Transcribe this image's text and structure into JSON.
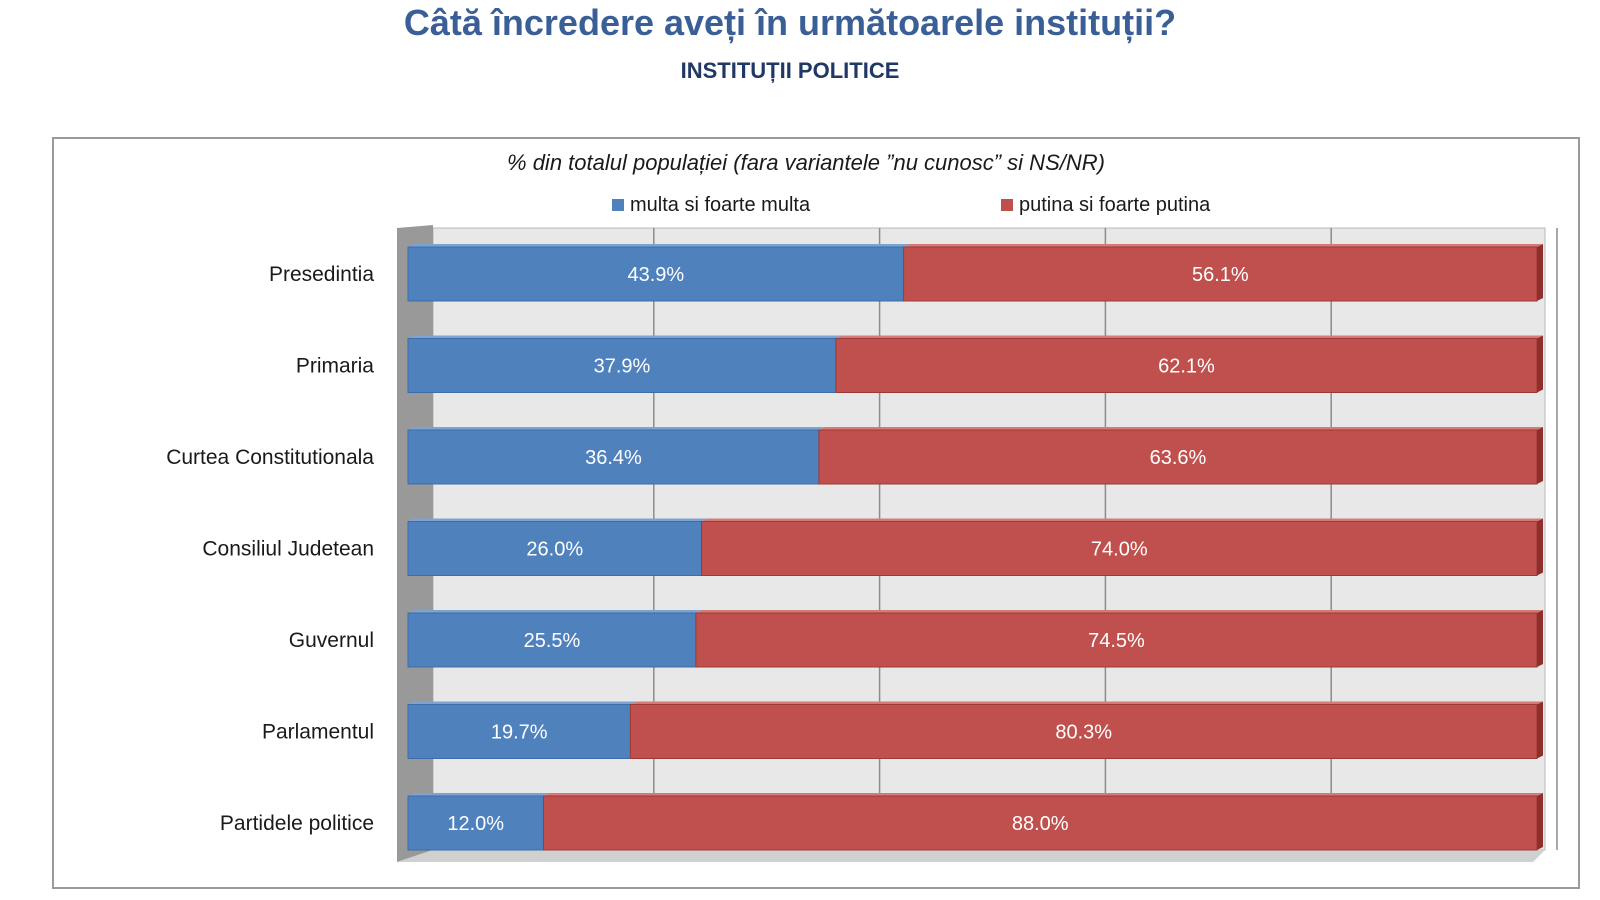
{
  "header": {
    "title": "Câtă încredere aveți în următoarele instituții?",
    "subtitle": "INSTITUȚII POLITICE"
  },
  "colors": {
    "positive": "#4f81bd",
    "negative": "#c0504d",
    "title": "#3a5f96",
    "subtitle": "#1f3864"
  },
  "chart_data": {
    "type": "bar",
    "orientation": "horizontal",
    "stacked": true,
    "percent_stacked": true,
    "title": "% din totalul populației (fara variantele ”nu cunosc” si NS/NR)",
    "legend_position": "top",
    "grid": true,
    "xlim": [
      0,
      100
    ],
    "categories": [
      "Presedintia",
      "Primaria",
      "Curtea Constitutionala",
      "Consiliul Judetean",
      "Guvernul",
      "Parlamentul",
      "Partidele politice"
    ],
    "series": [
      {
        "name": "multa si foarte multa",
        "color": "#4f81bd",
        "values": [
          43.9,
          37.9,
          36.4,
          26.0,
          25.5,
          19.7,
          12.0
        ],
        "labels": [
          "43.9%",
          "37.9%",
          "36.4%",
          "26.0%",
          "25.5%",
          "19.7%",
          "12.0%"
        ]
      },
      {
        "name": "putina si foarte putina",
        "color": "#c0504d",
        "values": [
          56.1,
          62.1,
          63.6,
          74.0,
          74.5,
          80.3,
          88.0
        ],
        "labels": [
          "56.1%",
          "62.1%",
          "63.6%",
          "74.0%",
          "74.5%",
          "80.3%",
          "88.0%"
        ]
      }
    ]
  }
}
